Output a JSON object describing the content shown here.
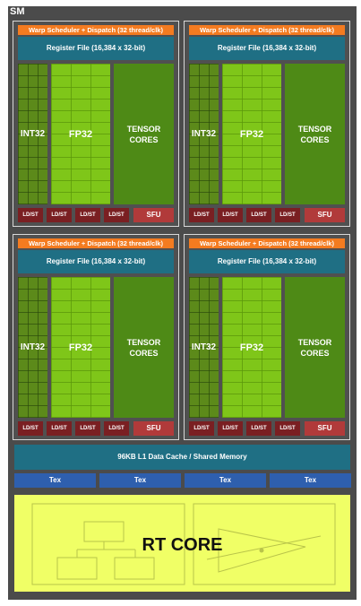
{
  "sm_label": "SM",
  "processing_block": {
    "warp_scheduler": "Warp Scheduler + Dispatch (32 thread/clk)",
    "register_file": "Register File (16,384 x 32-bit)",
    "int32": "INT32",
    "fp32": "FP32",
    "tensor_line1": "TENSOR",
    "tensor_line2": "CORES",
    "ldst": "LD/ST",
    "sfu": "SFU"
  },
  "l1_cache": "96KB L1 Data Cache / Shared Memory",
  "tex": "Tex",
  "rt_core": "RT CORE",
  "colors": {
    "background": "#4b4b4b",
    "warp_scheduler": "#f47b20",
    "register_file": "#1f6f84",
    "int32": "#5c8a1a",
    "fp32": "#7fc619",
    "tensor": "#4e8a16",
    "ldst": "#7a1f22",
    "sfu": "#b13a3a",
    "tex": "#2e5fae",
    "rt_core": "#f0ff66"
  }
}
